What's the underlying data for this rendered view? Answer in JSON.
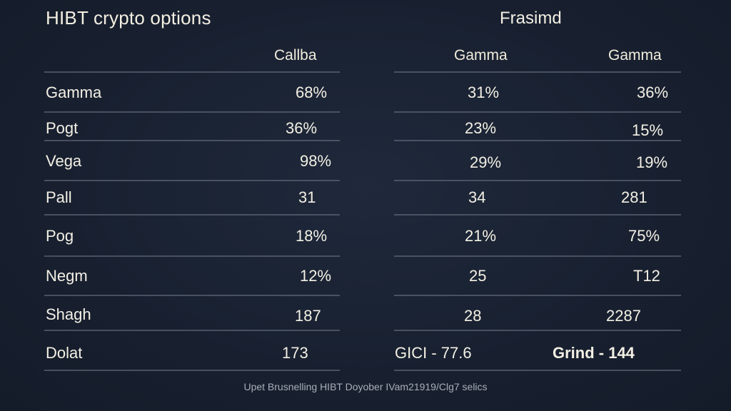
{
  "header": {
    "title": "HIBT crypto options",
    "right_title": "Frasimd"
  },
  "columns": [
    "Callba",
    "Gamma",
    "Gamma"
  ],
  "rows": [
    {
      "label": "Gamma",
      "values": [
        "68%",
        "31%",
        "36%"
      ]
    },
    {
      "label": "Pogt",
      "values": [
        "36%",
        "23%",
        "15%"
      ]
    },
    {
      "label": "Vega",
      "values": [
        "98%",
        "29%",
        "19%"
      ]
    },
    {
      "label": "Pall",
      "values": [
        "31",
        "34",
        "281"
      ]
    },
    {
      "label": "Pog",
      "values": [
        "18%",
        "21%",
        "75%"
      ]
    },
    {
      "label": "Negm",
      "values": [
        "12%",
        "25",
        "T12"
      ]
    },
    {
      "label": "Shagh",
      "values": [
        "187",
        "28",
        "2287"
      ]
    },
    {
      "label": "Dolat",
      "values": [
        "173",
        "GICI - 77.6",
        "Grind - 144"
      ]
    }
  ],
  "footer": "Upet Brusnelling HIBT Doyober IVam21919/Clg7 selics",
  "colors": {
    "background": "#1a2232",
    "text": "#f3f0e4",
    "divider": "#5a6272",
    "footer_text": "#a7adb8"
  }
}
